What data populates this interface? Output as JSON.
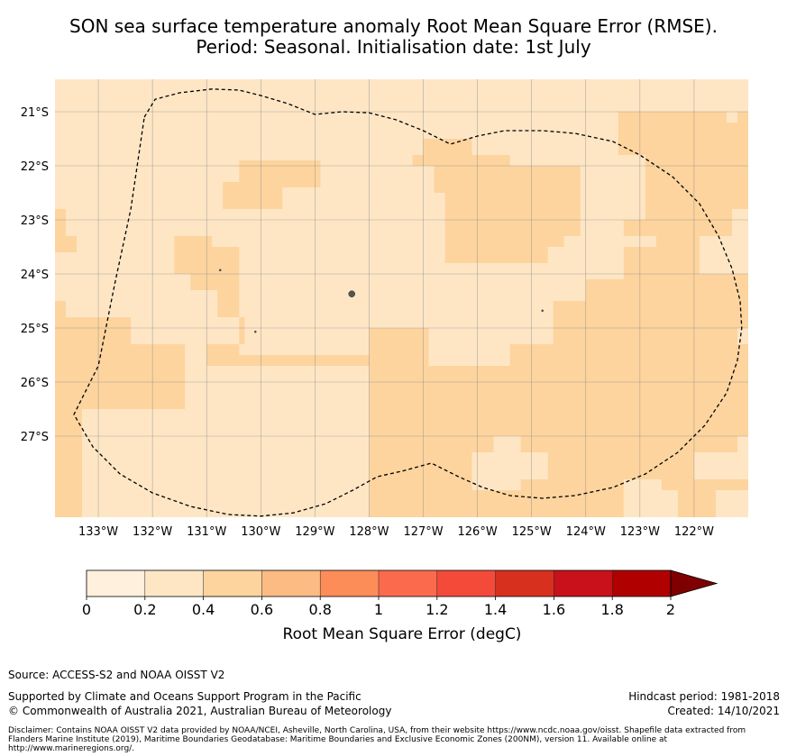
{
  "title": {
    "line1": "SON sea surface temperature anomaly Root Mean Square Error (RMSE).",
    "line2": "Period: Seasonal. Initialisation date: 1st July"
  },
  "map": {
    "lon_range": [
      -133.8,
      -121.0
    ],
    "lat_range": [
      -28.5,
      -20.4
    ],
    "lat_ticks": [
      {
        "value": -21,
        "label": "21°S"
      },
      {
        "value": -22,
        "label": "22°S"
      },
      {
        "value": -23,
        "label": "23°S"
      },
      {
        "value": -24,
        "label": "24°S"
      },
      {
        "value": -25,
        "label": "25°S"
      },
      {
        "value": -26,
        "label": "26°S"
      },
      {
        "value": -27,
        "label": "27°S"
      }
    ],
    "lon_ticks": [
      {
        "value": -133,
        "label": "133°W"
      },
      {
        "value": -132,
        "label": "132°W"
      },
      {
        "value": -131,
        "label": "131°W"
      },
      {
        "value": -130,
        "label": "130°W"
      },
      {
        "value": -129,
        "label": "129°W"
      },
      {
        "value": -128,
        "label": "128°W"
      },
      {
        "value": -127,
        "label": "127°W"
      },
      {
        "value": -126,
        "label": "126°W"
      },
      {
        "value": -125,
        "label": "125°W"
      },
      {
        "value": -124,
        "label": "124°W"
      },
      {
        "value": -123,
        "label": "123°W"
      },
      {
        "value": -122,
        "label": "122°W"
      }
    ],
    "background_level_color": "#fee6c5",
    "regions_0p4_0p6": [
      [
        [
          -133.8,
          -23.6
        ],
        [
          -133.4,
          -23.6
        ],
        [
          -133.4,
          -23.3
        ],
        [
          -133.6,
          -23.3
        ],
        [
          -133.6,
          -22.8
        ],
        [
          -133.8,
          -22.8
        ]
      ],
      [
        [
          -133.8,
          -24.5
        ],
        [
          -133.6,
          -24.5
        ],
        [
          -133.6,
          -24.8
        ],
        [
          -132.4,
          -24.8
        ],
        [
          -132.4,
          -25.3
        ],
        [
          -131.4,
          -25.3
        ],
        [
          -131.4,
          -26.5
        ],
        [
          -133.3,
          -26.5
        ],
        [
          -133.3,
          -28.5
        ],
        [
          -133.8,
          -28.5
        ]
      ],
      [
        [
          -131.6,
          -23.3
        ],
        [
          -130.9,
          -23.3
        ],
        [
          -130.9,
          -23.5
        ],
        [
          -130.4,
          -23.5
        ],
        [
          -130.4,
          -25.5
        ],
        [
          -128.0,
          -25.5
        ],
        [
          -128.0,
          -25.0
        ],
        [
          -126.9,
          -25.0
        ],
        [
          -126.9,
          -25.7
        ],
        [
          -125.4,
          -25.7
        ],
        [
          -125.4,
          -25.3
        ],
        [
          -124.6,
          -25.3
        ],
        [
          -124.6,
          -24.5
        ],
        [
          -124.0,
          -24.5
        ],
        [
          -124.0,
          -24.1
        ],
        [
          -123.3,
          -24.1
        ],
        [
          -123.3,
          -23.5
        ],
        [
          -122.7,
          -23.5
        ],
        [
          -122.7,
          -23.3
        ],
        [
          -121.9,
          -23.3
        ],
        [
          -121.9,
          -24.0
        ],
        [
          -121.0,
          -24.0
        ],
        [
          -121.0,
          -28.5
        ],
        [
          -128.0,
          -28.5
        ],
        [
          -128.0,
          -25.7
        ],
        [
          -131.0,
          -25.7
        ],
        [
          -131.0,
          -25.3
        ],
        [
          -130.3,
          -25.3
        ],
        [
          -130.3,
          -24.8
        ],
        [
          -130.8,
          -24.8
        ],
        [
          -130.8,
          -24.3
        ],
        [
          -131.3,
          -24.3
        ],
        [
          -131.3,
          -24.0
        ],
        [
          -131.6,
          -24.0
        ]
      ],
      [
        [
          -130.4,
          -21.9
        ],
        [
          -128.9,
          -21.9
        ],
        [
          -128.9,
          -22.4
        ],
        [
          -129.6,
          -22.4
        ],
        [
          -129.6,
          -22.8
        ],
        [
          -130.7,
          -22.8
        ],
        [
          -130.7,
          -22.3
        ],
        [
          -130.4,
          -22.3
        ]
      ],
      [
        [
          -127.0,
          -21.5
        ],
        [
          -126.1,
          -21.5
        ],
        [
          -126.1,
          -21.8
        ],
        [
          -125.4,
          -21.8
        ],
        [
          -125.4,
          -22.0
        ],
        [
          -124.1,
          -22.0
        ],
        [
          -124.1,
          -23.3
        ],
        [
          -124.4,
          -23.3
        ],
        [
          -124.4,
          -23.5
        ],
        [
          -124.7,
          -23.5
        ],
        [
          -124.7,
          -23.8
        ],
        [
          -126.6,
          -23.8
        ],
        [
          -126.6,
          -22.5
        ],
        [
          -126.8,
          -22.5
        ],
        [
          -126.8,
          -22.0
        ],
        [
          -127.2,
          -22.0
        ],
        [
          -127.2,
          -21.8
        ],
        [
          -127.0,
          -21.8
        ]
      ],
      [
        [
          -123.4,
          -21.0
        ],
        [
          -121.4,
          -21.0
        ],
        [
          -121.4,
          -21.2
        ],
        [
          -121.2,
          -21.2
        ],
        [
          -121.2,
          -21.0
        ],
        [
          -121.0,
          -21.0
        ],
        [
          -121.0,
          -22.8
        ],
        [
          -121.3,
          -22.8
        ],
        [
          -121.3,
          -23.3
        ],
        [
          -122.3,
          -23.3
        ],
        [
          -122.3,
          -23.5
        ],
        [
          -122.7,
          -23.5
        ],
        [
          -122.7,
          -23.3
        ],
        [
          -123.3,
          -23.3
        ],
        [
          -123.3,
          -23.0
        ],
        [
          -122.9,
          -23.0
        ],
        [
          -122.9,
          -21.8
        ],
        [
          -123.4,
          -21.8
        ]
      ]
    ],
    "regions_0p2_0p4_inside_lower": [
      [
        [
          -128.9,
          -27.3
        ],
        [
          -128.4,
          -27.3
        ],
        [
          -128.4,
          -27.8
        ],
        [
          -128.1,
          -27.8
        ],
        [
          -128.1,
          -28.0
        ],
        [
          -128.6,
          -28.0
        ],
        [
          -128.6,
          -28.3
        ],
        [
          -128.9,
          -28.3
        ]
      ],
      [
        [
          -126.1,
          -28.0
        ],
        [
          -125.2,
          -28.0
        ],
        [
          -125.2,
          -27.8
        ],
        [
          -124.7,
          -27.8
        ],
        [
          -124.7,
          -27.3
        ],
        [
          -125.2,
          -27.3
        ],
        [
          -125.2,
          -27.0
        ],
        [
          -125.7,
          -27.0
        ],
        [
          -125.7,
          -27.3
        ],
        [
          -126.1,
          -27.3
        ]
      ],
      [
        [
          -123.3,
          -27.8
        ],
        [
          -122.6,
          -27.8
        ],
        [
          -122.6,
          -28.0
        ],
        [
          -122.3,
          -28.0
        ],
        [
          -122.3,
          -28.5
        ],
        [
          -123.3,
          -28.5
        ]
      ],
      [
        [
          -122.0,
          -27.3
        ],
        [
          -121.2,
          -27.3
        ],
        [
          -121.2,
          -27.0
        ],
        [
          -121.0,
          -27.0
        ],
        [
          -121.0,
          -27.8
        ],
        [
          -122.0,
          -27.8
        ]
      ],
      [
        [
          -121.6,
          -28.0
        ],
        [
          -121.0,
          -28.0
        ],
        [
          -121.0,
          -28.5
        ],
        [
          -121.6,
          -28.5
        ]
      ],
      [
        [
          -121.2,
          -25.0
        ],
        [
          -121.0,
          -25.0
        ],
        [
          -121.0,
          -25.3
        ],
        [
          -121.2,
          -25.3
        ]
      ],
      [
        [
          -121.0,
          -26.0
        ],
        [
          -121.0,
          -26.4
        ],
        [
          -121.0,
          -26.4
        ]
      ]
    ],
    "eez_boundary": [
      [
        -132.15,
        -21.1
      ],
      [
        -131.95,
        -20.77
      ],
      [
        -131.5,
        -20.65
      ],
      [
        -130.9,
        -20.58
      ],
      [
        -130.4,
        -20.6
      ],
      [
        -130.0,
        -20.7
      ],
      [
        -129.5,
        -20.85
      ],
      [
        -129.0,
        -21.05
      ],
      [
        -128.5,
        -21.0
      ],
      [
        -128.0,
        -21.02
      ],
      [
        -127.5,
        -21.15
      ],
      [
        -127.0,
        -21.35
      ],
      [
        -126.5,
        -21.6
      ],
      [
        -126.0,
        -21.45
      ],
      [
        -125.5,
        -21.35
      ],
      [
        -124.8,
        -21.35
      ],
      [
        -124.2,
        -21.4
      ],
      [
        -123.5,
        -21.55
      ],
      [
        -123.0,
        -21.8
      ],
      [
        -122.4,
        -22.2
      ],
      [
        -121.9,
        -22.7
      ],
      [
        -121.55,
        -23.3
      ],
      [
        -121.3,
        -23.9
      ],
      [
        -121.15,
        -24.5
      ],
      [
        -121.12,
        -25.0
      ],
      [
        -121.2,
        -25.6
      ],
      [
        -121.4,
        -26.2
      ],
      [
        -121.8,
        -26.8
      ],
      [
        -122.3,
        -27.3
      ],
      [
        -122.9,
        -27.7
      ],
      [
        -123.5,
        -27.95
      ],
      [
        -124.2,
        -28.1
      ],
      [
        -124.8,
        -28.15
      ],
      [
        -125.4,
        -28.1
      ],
      [
        -125.9,
        -27.95
      ],
      [
        -126.35,
        -27.75
      ],
      [
        -126.85,
        -27.5
      ],
      [
        -127.4,
        -27.65
      ],
      [
        -127.85,
        -27.75
      ],
      [
        -128.3,
        -28.0
      ],
      [
        -128.8,
        -28.25
      ],
      [
        -129.4,
        -28.42
      ],
      [
        -130.0,
        -28.48
      ],
      [
        -130.6,
        -28.45
      ],
      [
        -131.3,
        -28.3
      ],
      [
        -132.0,
        -28.05
      ],
      [
        -132.6,
        -27.7
      ],
      [
        -133.1,
        -27.2
      ],
      [
        -133.45,
        -26.6
      ],
      [
        -133.0,
        -25.7
      ],
      [
        -132.7,
        -24.2
      ],
      [
        -132.4,
        -22.8
      ],
      [
        -132.15,
        -21.1
      ]
    ],
    "islands": [
      {
        "lon": -128.32,
        "lat": -24.37,
        "size": 3.5
      },
      {
        "lon": -130.75,
        "lat": -23.93,
        "size": 1
      },
      {
        "lon": -130.1,
        "lat": -25.07,
        "size": 1
      },
      {
        "lon": -124.8,
        "lat": -24.68,
        "size": 1
      }
    ]
  },
  "colorbar": {
    "levels": [
      0,
      0.2,
      0.4,
      0.6,
      0.8,
      1.0,
      1.2,
      1.4,
      1.6,
      1.8,
      2.0
    ],
    "colors": [
      "#fff0dd",
      "#fee6c5",
      "#fdd49e",
      "#fdbb84",
      "#fc8d59",
      "#fc6a4e",
      "#f44a3a",
      "#d7301f",
      "#c8111a",
      "#b10000"
    ],
    "extend_color": "#7f0000",
    "tick_labels": [
      "0",
      "0.2",
      "0.4",
      "0.6",
      "0.8",
      "1",
      "1.2",
      "1.4",
      "1.6",
      "1.8",
      "2"
    ],
    "label": "Root Mean Square Error (degC)"
  },
  "footer": {
    "source": "Source: ACCESS-S2 and NOAA OISST V2",
    "support": "Supported by Climate and Oceans Support Program in the Pacific",
    "copyright": "© Commonwealth of Australia 2021, Australian Bureau of Meteorology",
    "hindcast": "Hindcast period: 1981-2018",
    "created": "Created: 14/10/2021",
    "disclaimer": "Disclaimer: Contains NOAA OISST V2 data provided by NOAA/NCEI, Asheville, North Carolina, USA, from their website https://www.ncdc.noaa.gov/oisst. Shapefile data extracted from Flanders Marine Institute (2019), Maritime Boundaries Geodatabase: Maritime Boundaries and Exclusive Economic Zones (200NM), version 11. Available online at http://www.marineregions.org/."
  }
}
